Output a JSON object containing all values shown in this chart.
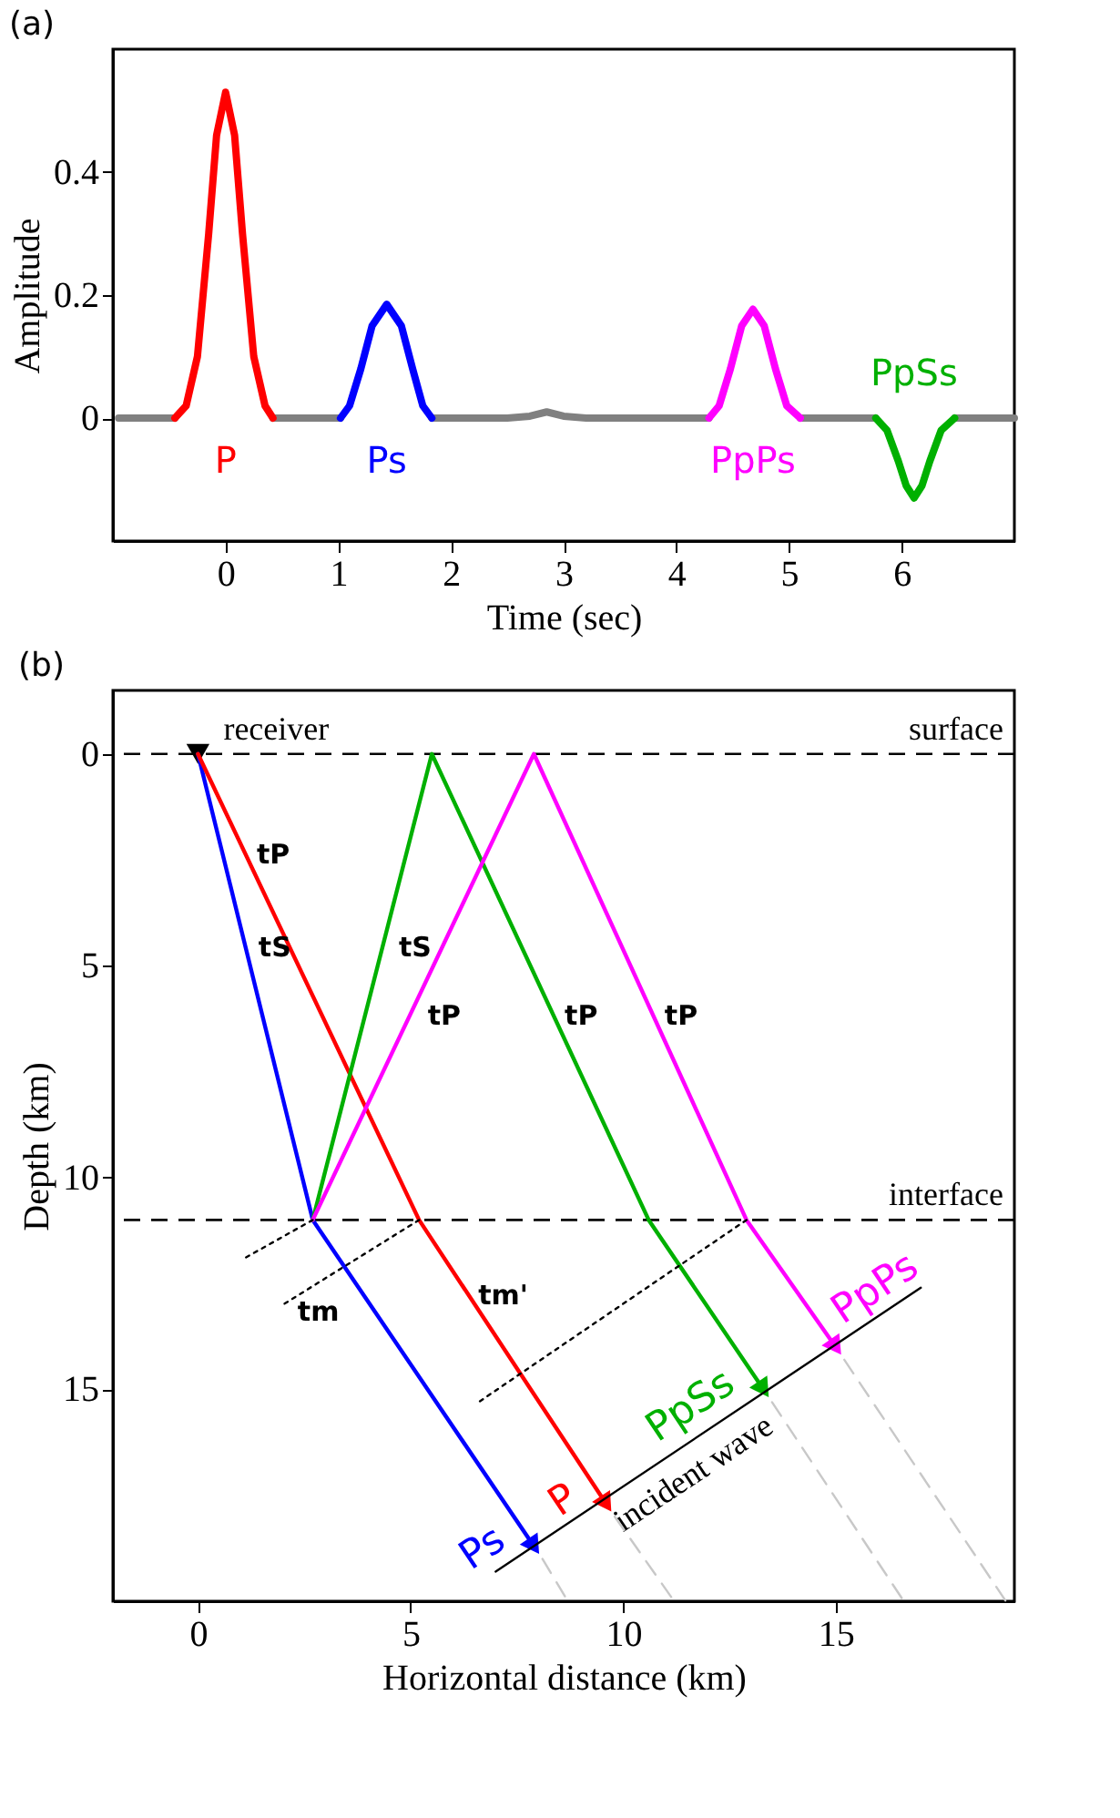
{
  "chart_data": [
    {
      "type": "line",
      "title": "(a)",
      "xlabel": "Time (sec)",
      "ylabel": "Amplitude",
      "xlim": [
        -1,
        7
      ],
      "ylim": [
        -0.2,
        0.6
      ],
      "xticks": [
        0,
        1,
        2,
        3,
        4,
        5,
        6
      ],
      "yticks": [
        0,
        0.2,
        0.4
      ],
      "series": [
        {
          "color": "#808080",
          "x": [
            -0.95,
            -0.45,
            0,
            0.42,
            1.02,
            1.2,
            1.83,
            2.5,
            2.7,
            2.85,
            3.0,
            3.2,
            4.29,
            4.5,
            5.1,
            5.77,
            6,
            6.47,
            7
          ],
          "values": [
            0,
            0,
            null,
            0,
            0,
            null,
            0,
            0,
            0.003,
            0.01,
            0.003,
            0,
            0,
            null,
            0,
            0,
            null,
            0,
            0
          ]
        },
        {
          "name": "P",
          "color": "#ff0000",
          "x": [
            -0.45,
            -0.35,
            -0.25,
            -0.15,
            -0.08,
            0,
            0.08,
            0.15,
            0.25,
            0.35,
            0.42
          ],
          "values": [
            0,
            0.02,
            0.1,
            0.3,
            0.46,
            0.53,
            0.46,
            0.3,
            0.1,
            0.02,
            0
          ]
        },
        {
          "name": "Ps",
          "color": "#0000ff",
          "x": [
            1.02,
            1.1,
            1.2,
            1.3,
            1.43,
            1.56,
            1.66,
            1.75,
            1.83
          ],
          "values": [
            0,
            0.02,
            0.08,
            0.15,
            0.185,
            0.15,
            0.08,
            0.02,
            0
          ]
        },
        {
          "name": "PpPs",
          "color": "#ff00ff",
          "x": [
            4.29,
            4.38,
            4.48,
            4.58,
            4.68,
            4.78,
            4.88,
            4.98,
            5.1
          ],
          "values": [
            0,
            0.02,
            0.08,
            0.15,
            0.177,
            0.15,
            0.08,
            0.02,
            0
          ]
        },
        {
          "name": "PpSs",
          "color": "#00b000",
          "x": [
            5.77,
            5.87,
            5.97,
            6.04,
            6.11,
            6.18,
            6.25,
            6.35,
            6.47
          ],
          "values": [
            0,
            -0.02,
            -0.07,
            -0.11,
            -0.13,
            -0.11,
            -0.07,
            -0.02,
            0
          ]
        }
      ]
    },
    {
      "type": "line",
      "title": "(b)",
      "xlabel": "Horizontal distance (km)",
      "ylabel": "Depth (km)",
      "xlim": [
        -2,
        19.2
      ],
      "ylim": [
        20,
        -1.5
      ],
      "xticks": [
        0,
        5,
        10,
        15
      ],
      "yticks": [
        0,
        5,
        10,
        15
      ],
      "ref_lines": [
        {
          "axis": "y",
          "value": 0,
          "label": "surface",
          "color": "#000000",
          "line_style": "dashed"
        },
        {
          "axis": "y",
          "value": 11,
          "label": "interface",
          "color": "#000000",
          "line_style": "dashed"
        }
      ],
      "annotations": [
        {
          "text": "tP",
          "x": 1.04,
          "y": 2.2
        },
        {
          "text": "tS",
          "x": 1.08,
          "y": 4.4
        },
        {
          "text": "tS",
          "x": 4.38,
          "y": 4.4
        },
        {
          "text": "tP",
          "x": 5.06,
          "y": 6.0
        },
        {
          "text": "tP",
          "x": 8.28,
          "y": 6.0
        },
        {
          "text": "tP",
          "x": 10.63,
          "y": 6.0
        },
        {
          "text": "tm",
          "x": 2.0,
          "y": 13.0
        },
        {
          "text": "tm'",
          "x": 6.25,
          "y": 12.6
        }
      ],
      "series": [
        {
          "name": "receiver",
          "type": "scatter",
          "marker": "triangle",
          "color": "#000000",
          "x": [
            0
          ],
          "values": [
            0
          ]
        },
        {
          "name": "Ps",
          "color": "#0000ff",
          "x": [
            0,
            2.7,
            7.9
          ],
          "values": [
            0,
            11,
            18.7
          ]
        },
        {
          "name": "P",
          "color": "#ff0000",
          "x": [
            0,
            5.2,
            9.6
          ],
          "values": [
            0,
            11,
            17.7
          ]
        },
        {
          "name": "PpSs",
          "color": "#00b000",
          "x": [
            2.7,
            5.5,
            10.6,
            13.3
          ],
          "values": [
            11,
            0,
            11,
            15.0
          ]
        },
        {
          "name": "PpPs",
          "color": "#ff00ff",
          "x": [
            2.7,
            7.9,
            12.9,
            15.0
          ],
          "values": [
            11,
            0,
            11,
            14.0
          ]
        },
        {
          "name": "incident wave",
          "color": "#000000",
          "x": [
            7.0,
            17.0
          ],
          "values": [
            19.3,
            12.6
          ]
        },
        {
          "color": "#c8c8c8",
          "line_style": "dashed",
          "x": [
            8.1,
            8.7
          ],
          "values": [
            19.0,
            20
          ]
        },
        {
          "color": "#c8c8c8",
          "line_style": "dashed",
          "x": [
            9.8,
            11.2
          ],
          "values": [
            18.0,
            20
          ]
        },
        {
          "color": "#c8c8c8",
          "line_style": "dashed",
          "x": [
            13.5,
            16.6
          ],
          "values": [
            15.3,
            20
          ]
        },
        {
          "color": "#c8c8c8",
          "line_style": "dashed",
          "x": [
            15.2,
            19.0
          ],
          "values": [
            14.3,
            20
          ]
        },
        {
          "color": "#000000",
          "line_style": "dotted",
          "x": [
            2.7,
            1.1
          ],
          "values": [
            11,
            11.9
          ]
        },
        {
          "color": "#000000",
          "line_style": "dotted",
          "x": [
            5.2,
            2.0
          ],
          "values": [
            11,
            13.0
          ]
        },
        {
          "color": "#000000",
          "line_style": "dotted",
          "x": [
            12.9,
            6.6
          ],
          "values": [
            11,
            15.3
          ]
        }
      ]
    }
  ]
}
